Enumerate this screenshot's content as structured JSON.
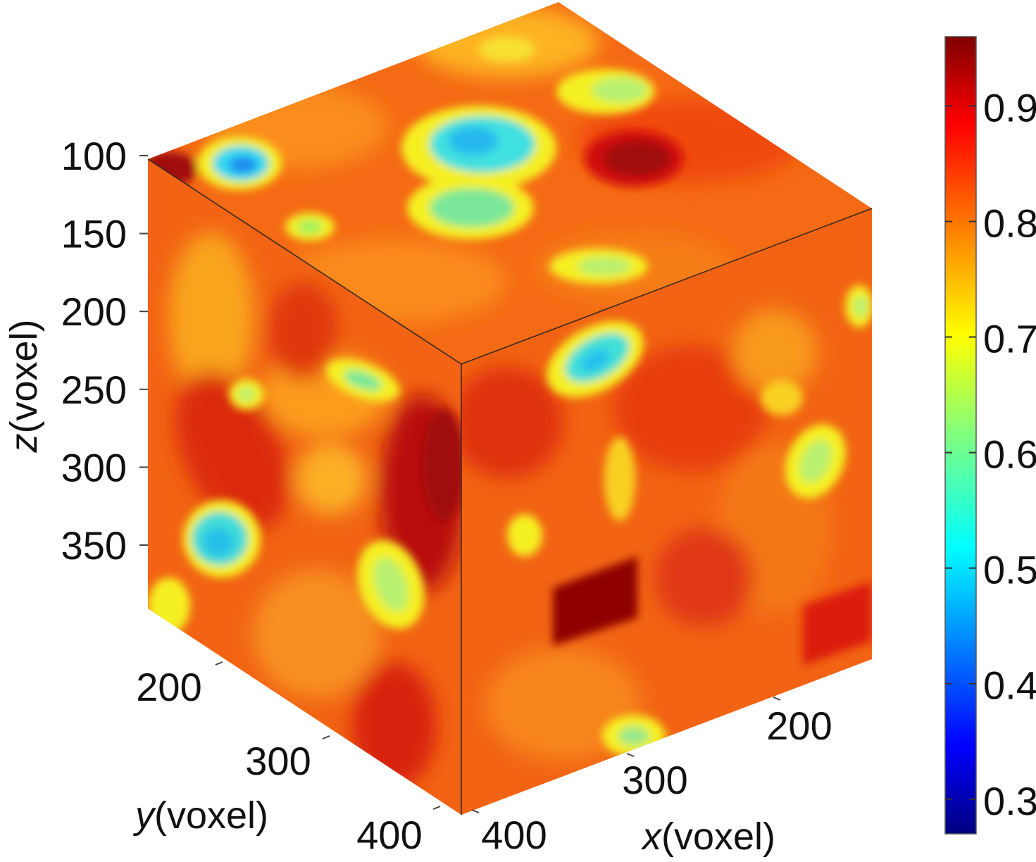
{
  "chart_data": {
    "type": "heatmap",
    "title": "",
    "axes": {
      "x": {
        "var": "x",
        "unit": "(voxel)",
        "ticks": [
          "200",
          "300",
          "400"
        ]
      },
      "y": {
        "var": "y",
        "unit": "(voxel)",
        "ticks": [
          "200",
          "300",
          "400"
        ]
      },
      "z": {
        "var": "z",
        "unit": "(voxel)",
        "ticks": [
          "100",
          "150",
          "200",
          "250",
          "300",
          "350"
        ]
      }
    },
    "colorbar": {
      "colormap": "jet",
      "ticks": [
        "0.3",
        "0.4",
        "0.5",
        "0.6",
        "0.7",
        "0.8",
        "0.9"
      ],
      "range": [
        0.27,
        0.96
      ]
    },
    "projection": "3d-cube",
    "faces": [
      "top",
      "left",
      "right"
    ],
    "value_distribution": {
      "background": 0.84,
      "high_regions": [
        0.93,
        0.95
      ],
      "low_regions": [
        0.48,
        0.52,
        0.6,
        0.68
      ]
    }
  }
}
